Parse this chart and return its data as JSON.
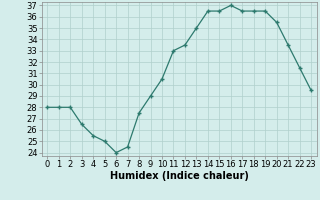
{
  "x": [
    0,
    1,
    2,
    3,
    4,
    5,
    6,
    7,
    8,
    9,
    10,
    11,
    12,
    13,
    14,
    15,
    16,
    17,
    18,
    19,
    20,
    21,
    22,
    23
  ],
  "y": [
    28,
    28,
    28,
    26.5,
    25.5,
    25,
    24,
    24.5,
    27.5,
    29,
    30.5,
    33,
    33.5,
    35,
    36.5,
    36.5,
    37,
    36.5,
    36.5,
    36.5,
    35.5,
    33.5,
    31.5,
    29.5
  ],
  "line_color": "#2d7a6e",
  "marker_color": "#2d7a6e",
  "bg_color": "#d4edeb",
  "grid_color": "#b0d0cc",
  "xlabel": "Humidex (Indice chaleur)",
  "ylim": [
    24,
    37
  ],
  "xlim": [
    -0.5,
    23.5
  ],
  "yticks": [
    24,
    25,
    26,
    27,
    28,
    29,
    30,
    31,
    32,
    33,
    34,
    35,
    36,
    37
  ],
  "xticks": [
    0,
    1,
    2,
    3,
    4,
    5,
    6,
    7,
    8,
    9,
    10,
    11,
    12,
    13,
    14,
    15,
    16,
    17,
    18,
    19,
    20,
    21,
    22,
    23
  ],
  "xtick_labels": [
    "0",
    "1",
    "2",
    "3",
    "4",
    "5",
    "6",
    "7",
    "8",
    "9",
    "10",
    "11",
    "12",
    "13",
    "14",
    "15",
    "16",
    "17",
    "18",
    "19",
    "20",
    "21",
    "22",
    "23"
  ],
  "tick_fontsize": 6,
  "label_fontsize": 7
}
